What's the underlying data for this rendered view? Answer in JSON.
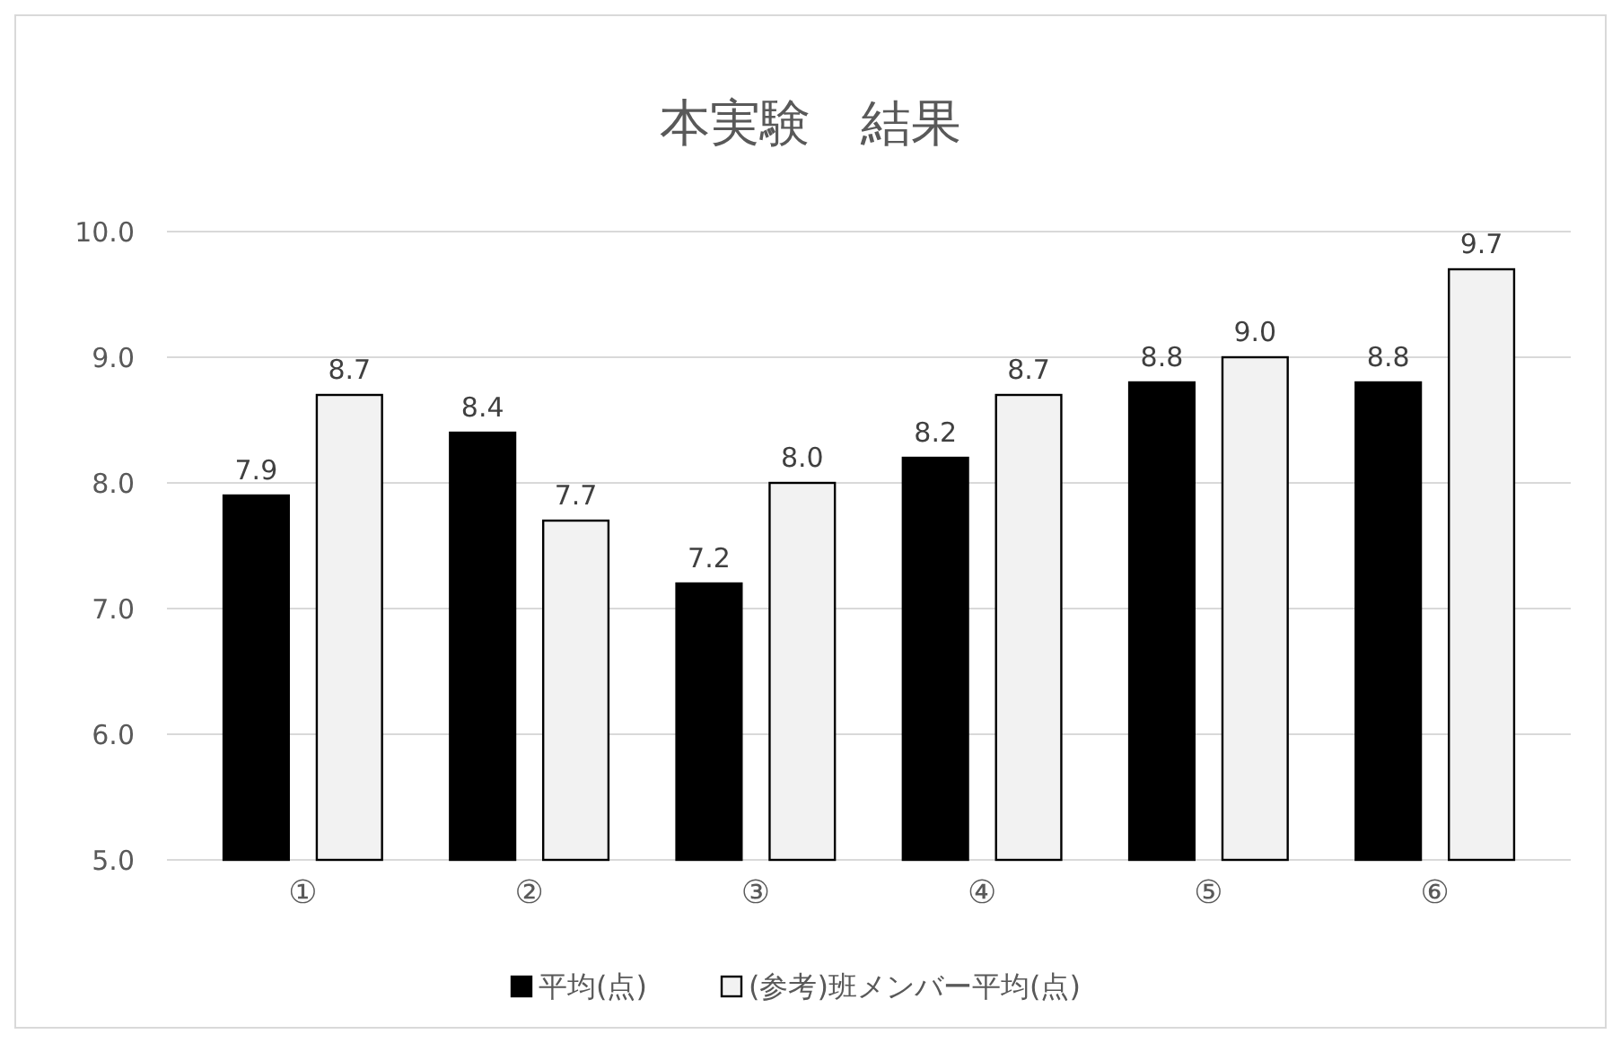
{
  "chart_data": {
    "type": "bar",
    "title": "本実験　結果",
    "categories": [
      "①",
      "②",
      "③",
      "④",
      "⑤",
      "⑥"
    ],
    "series": [
      {
        "name": "平均(点)",
        "color": "#000000",
        "values": [
          7.9,
          8.4,
          7.2,
          8.2,
          8.8,
          8.8
        ],
        "value_labels": [
          "7.9",
          "8.4",
          "7.2",
          "8.2",
          "8.8",
          "8.8"
        ]
      },
      {
        "name": "(参考)班メンバー平均(点)",
        "color": "#f2f2f2",
        "values": [
          8.7,
          7.7,
          8.0,
          8.7,
          9.0,
          9.7
        ],
        "value_labels": [
          "8.7",
          "7.7",
          "8.0",
          "8.7",
          "9.0",
          "9.7"
        ]
      }
    ],
    "ylim": [
      5,
      10
    ],
    "yticks": [
      {
        "value": 5,
        "label": "5.0"
      },
      {
        "value": 6,
        "label": "6.0"
      },
      {
        "value": 7,
        "label": "7.0"
      },
      {
        "value": 8,
        "label": "8.0"
      },
      {
        "value": 9,
        "label": "9.0"
      },
      {
        "value": 10,
        "label": "10.0"
      }
    ],
    "grid": "y",
    "legend": "bottom"
  }
}
